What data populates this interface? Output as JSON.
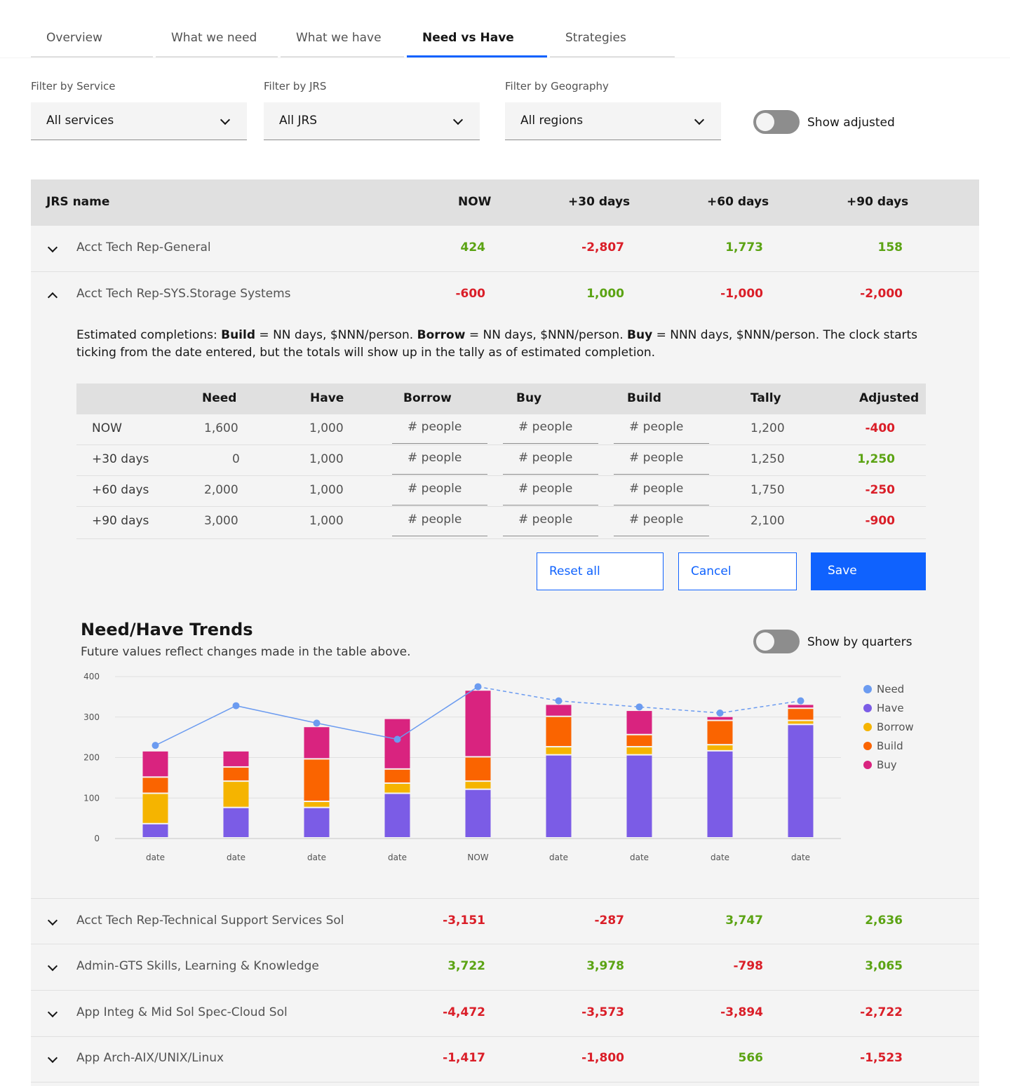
{
  "tabs": [
    "Overview",
    "What we need",
    "What we have",
    "Need vs Have",
    "Strategies"
  ],
  "filters": {
    "service": {
      "label": "Filter by Service",
      "value": "All services"
    },
    "jrs": {
      "label": "Filter by JRS",
      "value": "All JRS"
    },
    "geography": {
      "label": "Filter by Geography",
      "value": "All regions"
    },
    "show_adjusted": "Show adjusted"
  },
  "table": {
    "headers": [
      "JRS name",
      "NOW",
      "+30 days",
      "+60 days",
      "+90 days"
    ],
    "rows": [
      {
        "name": "Acct Tech Rep-General",
        "values": [
          "424",
          "-2,807",
          "1,773",
          "158"
        ]
      },
      {
        "name": "Acct Tech Rep-SYS.Storage Systems",
        "values": [
          "-600",
          "1,000",
          "-1,000",
          "-2,000"
        ]
      },
      {
        "name": "Acct Tech Rep-Technical Support Services Sol",
        "values": [
          "-3,151",
          "-287",
          "3,747",
          "2,636"
        ]
      },
      {
        "name": "Admin-GTS Skills, Learning & Knowledge",
        "values": [
          "3,722",
          "3,978",
          "-798",
          "3,065"
        ]
      },
      {
        "name": "App Integ & Mid Sol Spec-Cloud Sol",
        "values": [
          "-4,472",
          "-3,573",
          "-3,894",
          "-2,722"
        ]
      },
      {
        "name": "App Arch-AIX/UNIX/Linux",
        "values": [
          "-1,417",
          "-1,800",
          "566",
          "-1,523"
        ]
      }
    ]
  },
  "expanded": {
    "desc": {
      "p1": "Estimated completions: ",
      "b1": "Build",
      "p2": " = NN days, $NNN/person. ",
      "b2": "Borrow",
      "p3": " = NN days, $NNN/person.  ",
      "b3": "Buy",
      "p4": " = NNN days, $NNN/person. The clock starts ticking from the date entered, but the totals will show up in the tally as of estimated completion."
    },
    "inner_headers": [
      "Need",
      "Have",
      "Borrow",
      "Buy",
      "Build",
      "Tally",
      "Adjusted"
    ],
    "input_placeholder": "# people",
    "inner_rows": [
      {
        "label": "NOW",
        "need": "1,600",
        "have": "1,000",
        "tally": "1,200",
        "adjusted": "-400"
      },
      {
        "label": "+30 days",
        "need": "0",
        "have": "1,000",
        "tally": "1,250",
        "adjusted": "1,250"
      },
      {
        "label": "+60 days",
        "need": "2,000",
        "have": "1,000",
        "tally": "1,750",
        "adjusted": "-250"
      },
      {
        "label": "+90 days",
        "need": "3,000",
        "have": "1,000",
        "tally": "2,100",
        "adjusted": "-900"
      }
    ],
    "buttons": {
      "reset": "Reset all",
      "cancel": "Cancel",
      "save": "Save"
    }
  },
  "trends": {
    "title": "Need/Have Trends",
    "subtitle": "Future values reflect changes made in the table above.",
    "toggle_label": "Show by quarters"
  },
  "colors": {
    "accent": "#0f62fe",
    "positive": "#5ba313",
    "negative": "#da1e28",
    "need": "#6b9bf0",
    "have": "#7b5ce6",
    "borrow": "#f5b400",
    "build": "#fa6400",
    "buy": "#d9237f"
  },
  "chart_data": {
    "type": "bar",
    "stacked": true,
    "categories": [
      "date",
      "date",
      "date",
      "date",
      "NOW",
      "date",
      "date",
      "date",
      "date"
    ],
    "series": [
      {
        "name": "Have",
        "values": [
          35,
          75,
          75,
          110,
          120,
          205,
          205,
          215,
          280
        ]
      },
      {
        "name": "Borrow",
        "values": [
          75,
          65,
          15,
          25,
          20,
          20,
          20,
          15,
          10
        ]
      },
      {
        "name": "Build",
        "values": [
          40,
          35,
          105,
          35,
          60,
          75,
          30,
          60,
          30
        ]
      },
      {
        "name": "Buy",
        "values": [
          65,
          40,
          80,
          125,
          165,
          30,
          60,
          10,
          10
        ]
      }
    ],
    "line": {
      "name": "Need",
      "values": [
        230,
        328,
        285,
        245,
        375,
        340,
        325,
        310,
        340
      ],
      "dashed_from_index": 4
    },
    "legend": [
      "Need",
      "Have",
      "Borrow",
      "Build",
      "Buy"
    ],
    "ylim": [
      0,
      400
    ],
    "yticks": [
      0,
      100,
      200,
      300,
      400
    ],
    "grid": true,
    "legend_position": "right"
  }
}
